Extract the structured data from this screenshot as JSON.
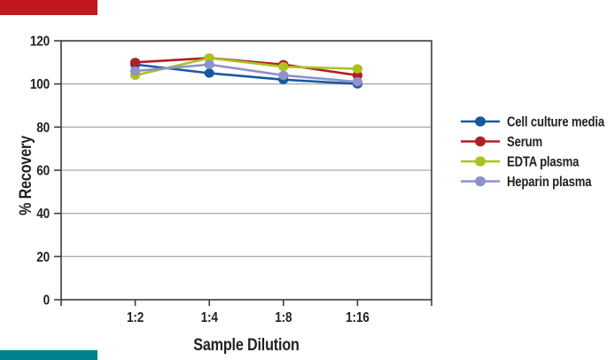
{
  "figure": {
    "background": "#FFFFFF"
  },
  "brand": {
    "top_bar": {
      "color": "#C2171D"
    },
    "bottom_bar": {
      "color": "#00828C"
    }
  },
  "chart_data": {
    "type": "line",
    "title": "",
    "categories": [
      "1:2",
      "1:4",
      "1:8",
      "1:16"
    ],
    "series": [
      {
        "name": "Cell culture media",
        "color": "#1659A3",
        "values": [
          109,
          105,
          102,
          100
        ]
      },
      {
        "name": "Serum",
        "color": "#B11F24",
        "values": [
          110,
          112,
          109,
          104
        ]
      },
      {
        "name": "EDTA plasma",
        "color": "#ADC11E",
        "values": [
          104,
          112,
          108,
          107
        ]
      },
      {
        "name": "Heparin plasma",
        "color": "#8D91CD",
        "values": [
          106,
          109,
          104,
          101
        ]
      }
    ],
    "xlabel": "Sample Dilution",
    "ylabel": "% Recovery",
    "ylim": [
      0,
      120
    ],
    "yticks": [
      0,
      20,
      40,
      60,
      80,
      100,
      120
    ],
    "grid": "horizontal",
    "legend_position": "right",
    "colors": {
      "gridline": "#ACACAC",
      "axis": "#3E3E3E",
      "text": "#231F20"
    }
  }
}
